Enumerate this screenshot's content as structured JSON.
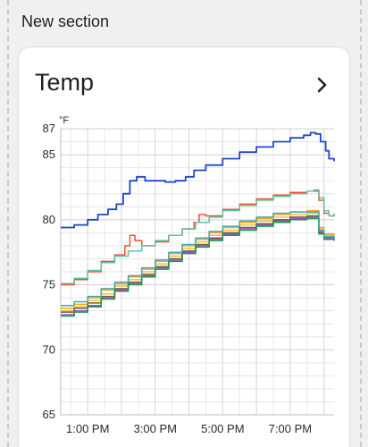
{
  "section": {
    "title": "New section"
  },
  "card": {
    "title": "Temp"
  },
  "colors": {
    "blue": "#2146c7",
    "red": "#f0502a",
    "teal": "#5fc2a6",
    "orange": "#f5a623",
    "yellow": "#e9c43a",
    "purple": "#9c4fdc",
    "brown": "#7b5d3a",
    "green": "#1a9a4a",
    "cyan": "#45a8b4"
  },
  "chart_data": {
    "type": "line",
    "ylabel": "°F",
    "ylim": [
      65,
      87
    ],
    "yticks": [
      65,
      70,
      75,
      80,
      85,
      87
    ],
    "xticks": [
      "1:00 PM",
      "3:00 PM",
      "5:00 PM",
      "7:00 PM"
    ],
    "xlim": [
      12.2,
      20.3
    ],
    "grid": true,
    "series": [
      {
        "color": "blue",
        "points": [
          [
            12.2,
            79.4
          ],
          [
            12.6,
            79.6
          ],
          [
            13.0,
            80.0
          ],
          [
            13.3,
            80.4
          ],
          [
            13.6,
            80.8
          ],
          [
            13.85,
            81.2
          ],
          [
            14.05,
            82.0
          ],
          [
            14.25,
            83.0
          ],
          [
            14.45,
            83.3
          ],
          [
            14.7,
            83.0
          ],
          [
            15.3,
            82.9
          ],
          [
            15.6,
            83.0
          ],
          [
            15.9,
            83.3
          ],
          [
            16.15,
            83.8
          ],
          [
            16.5,
            84.2
          ],
          [
            17.0,
            84.7
          ],
          [
            17.5,
            85.2
          ],
          [
            18.0,
            85.6
          ],
          [
            18.5,
            86.0
          ],
          [
            19.0,
            86.3
          ],
          [
            19.4,
            86.5
          ],
          [
            19.6,
            86.7
          ],
          [
            19.75,
            86.6
          ],
          [
            19.9,
            86.0
          ],
          [
            20.05,
            85.3
          ],
          [
            20.15,
            84.7
          ],
          [
            20.3,
            84.5
          ]
        ]
      },
      {
        "color": "red",
        "points": [
          [
            12.2,
            75.0
          ],
          [
            12.6,
            75.4
          ],
          [
            13.0,
            76.0
          ],
          [
            13.4,
            76.8
          ],
          [
            13.8,
            77.3
          ],
          [
            14.1,
            78.0
          ],
          [
            14.25,
            78.8
          ],
          [
            14.4,
            78.4
          ],
          [
            14.6,
            78.0
          ],
          [
            15.0,
            78.3
          ],
          [
            15.4,
            78.8
          ],
          [
            15.8,
            79.3
          ],
          [
            16.15,
            79.8
          ],
          [
            16.3,
            80.4
          ],
          [
            16.5,
            80.3
          ],
          [
            17.0,
            80.8
          ],
          [
            17.5,
            81.2
          ],
          [
            18.0,
            81.6
          ],
          [
            18.5,
            81.9
          ],
          [
            19.0,
            82.1
          ],
          [
            19.5,
            82.2
          ],
          [
            19.7,
            82.2
          ],
          [
            19.85,
            81.5
          ],
          [
            20.0,
            80.5
          ],
          [
            20.15,
            80.3
          ],
          [
            20.3,
            80.4
          ]
        ]
      },
      {
        "color": "teal",
        "points": [
          [
            12.2,
            75.1
          ],
          [
            12.6,
            75.5
          ],
          [
            13.0,
            76.1
          ],
          [
            13.4,
            76.7
          ],
          [
            13.8,
            77.2
          ],
          [
            14.2,
            77.6
          ],
          [
            14.6,
            78.0
          ],
          [
            15.0,
            78.4
          ],
          [
            15.4,
            78.8
          ],
          [
            15.8,
            79.3
          ],
          [
            16.2,
            79.8
          ],
          [
            16.6,
            80.2
          ],
          [
            17.0,
            80.7
          ],
          [
            17.5,
            81.1
          ],
          [
            18.0,
            81.5
          ],
          [
            18.5,
            81.8
          ],
          [
            19.0,
            82.0
          ],
          [
            19.5,
            82.2
          ],
          [
            19.7,
            82.3
          ],
          [
            19.85,
            81.7
          ],
          [
            20.0,
            80.7
          ],
          [
            20.15,
            80.3
          ],
          [
            20.3,
            80.5
          ]
        ]
      },
      {
        "color": "orange",
        "points": [
          [
            12.2,
            73.2
          ],
          [
            12.6,
            73.5
          ],
          [
            13.0,
            74.0
          ],
          [
            13.4,
            74.6
          ],
          [
            13.8,
            75.1
          ],
          [
            14.2,
            75.6
          ],
          [
            14.6,
            76.2
          ],
          [
            15.0,
            76.8
          ],
          [
            15.4,
            77.4
          ],
          [
            15.8,
            78.0
          ],
          [
            16.2,
            78.5
          ],
          [
            16.6,
            79.0
          ],
          [
            17.0,
            79.4
          ],
          [
            17.5,
            79.8
          ],
          [
            18.0,
            80.1
          ],
          [
            18.5,
            80.4
          ],
          [
            19.0,
            80.6
          ],
          [
            19.5,
            80.7
          ],
          [
            19.7,
            80.7
          ],
          [
            19.85,
            79.4
          ],
          [
            20.0,
            78.9
          ],
          [
            20.3,
            78.7
          ]
        ]
      },
      {
        "color": "yellow",
        "points": [
          [
            12.2,
            73.0
          ],
          [
            12.6,
            73.3
          ],
          [
            13.0,
            73.8
          ],
          [
            13.4,
            74.3
          ],
          [
            13.8,
            74.9
          ],
          [
            14.2,
            75.4
          ],
          [
            14.6,
            76.0
          ],
          [
            15.0,
            76.6
          ],
          [
            15.4,
            77.2
          ],
          [
            15.8,
            77.8
          ],
          [
            16.2,
            78.3
          ],
          [
            16.6,
            78.8
          ],
          [
            17.0,
            79.2
          ],
          [
            17.5,
            79.6
          ],
          [
            18.0,
            79.9
          ],
          [
            18.5,
            80.2
          ],
          [
            19.0,
            80.4
          ],
          [
            19.5,
            80.5
          ],
          [
            19.7,
            80.5
          ],
          [
            19.85,
            79.3
          ],
          [
            20.0,
            78.8
          ],
          [
            20.3,
            78.6
          ]
        ]
      },
      {
        "color": "purple",
        "points": [
          [
            12.2,
            72.7
          ],
          [
            12.6,
            73.0
          ],
          [
            13.0,
            73.4
          ],
          [
            13.4,
            74.0
          ],
          [
            13.8,
            74.6
          ],
          [
            14.2,
            75.1
          ],
          [
            14.6,
            75.7
          ],
          [
            15.0,
            76.3
          ],
          [
            15.4,
            76.9
          ],
          [
            15.8,
            77.5
          ],
          [
            16.2,
            78.0
          ],
          [
            16.6,
            78.5
          ],
          [
            17.0,
            78.9
          ],
          [
            17.5,
            79.3
          ],
          [
            18.0,
            79.6
          ],
          [
            18.5,
            79.9
          ],
          [
            19.0,
            80.1
          ],
          [
            19.5,
            80.2
          ],
          [
            19.7,
            80.2
          ],
          [
            19.85,
            79.1
          ],
          [
            20.0,
            78.6
          ],
          [
            20.3,
            78.5
          ]
        ]
      },
      {
        "color": "brown",
        "points": [
          [
            12.2,
            72.9
          ],
          [
            12.6,
            73.2
          ],
          [
            13.0,
            73.6
          ],
          [
            13.4,
            74.1
          ],
          [
            13.8,
            74.7
          ],
          [
            14.2,
            75.2
          ],
          [
            14.6,
            75.8
          ],
          [
            15.0,
            76.4
          ],
          [
            15.4,
            77.0
          ],
          [
            15.8,
            77.6
          ],
          [
            16.2,
            78.1
          ],
          [
            16.6,
            78.6
          ],
          [
            17.0,
            79.0
          ],
          [
            17.5,
            79.4
          ],
          [
            18.0,
            79.7
          ],
          [
            18.5,
            80.0
          ],
          [
            19.0,
            80.2
          ],
          [
            19.5,
            80.3
          ],
          [
            19.7,
            80.3
          ],
          [
            19.85,
            79.0
          ],
          [
            20.0,
            78.5
          ],
          [
            20.3,
            78.4
          ]
        ]
      },
      {
        "color": "green",
        "points": [
          [
            12.2,
            72.6
          ],
          [
            12.6,
            72.9
          ],
          [
            13.0,
            73.3
          ],
          [
            13.4,
            73.9
          ],
          [
            13.8,
            74.5
          ],
          [
            14.2,
            75.0
          ],
          [
            14.6,
            75.6
          ],
          [
            15.0,
            76.2
          ],
          [
            15.4,
            76.8
          ],
          [
            15.8,
            77.4
          ],
          [
            16.2,
            77.9
          ],
          [
            16.6,
            78.4
          ],
          [
            17.0,
            78.8
          ],
          [
            17.5,
            79.2
          ],
          [
            18.0,
            79.5
          ],
          [
            18.5,
            79.8
          ],
          [
            19.0,
            80.0
          ],
          [
            19.5,
            80.1
          ],
          [
            19.7,
            80.1
          ],
          [
            19.85,
            78.9
          ],
          [
            20.0,
            78.5
          ],
          [
            20.3,
            78.4
          ]
        ]
      },
      {
        "color": "cyan",
        "points": [
          [
            12.2,
            73.4
          ],
          [
            12.6,
            73.7
          ],
          [
            13.0,
            74.1
          ],
          [
            13.4,
            74.7
          ],
          [
            13.8,
            75.2
          ],
          [
            14.2,
            75.7
          ],
          [
            14.6,
            76.3
          ],
          [
            15.0,
            76.9
          ],
          [
            15.4,
            77.5
          ],
          [
            15.8,
            78.1
          ],
          [
            16.2,
            78.6
          ],
          [
            16.6,
            79.1
          ],
          [
            17.0,
            79.5
          ],
          [
            17.5,
            79.9
          ],
          [
            18.0,
            80.2
          ],
          [
            18.5,
            80.5
          ],
          [
            19.0,
            80.6
          ],
          [
            19.5,
            80.6
          ],
          [
            19.7,
            80.6
          ],
          [
            19.85,
            79.2
          ],
          [
            20.0,
            78.7
          ],
          [
            20.3,
            78.5
          ]
        ]
      }
    ]
  }
}
